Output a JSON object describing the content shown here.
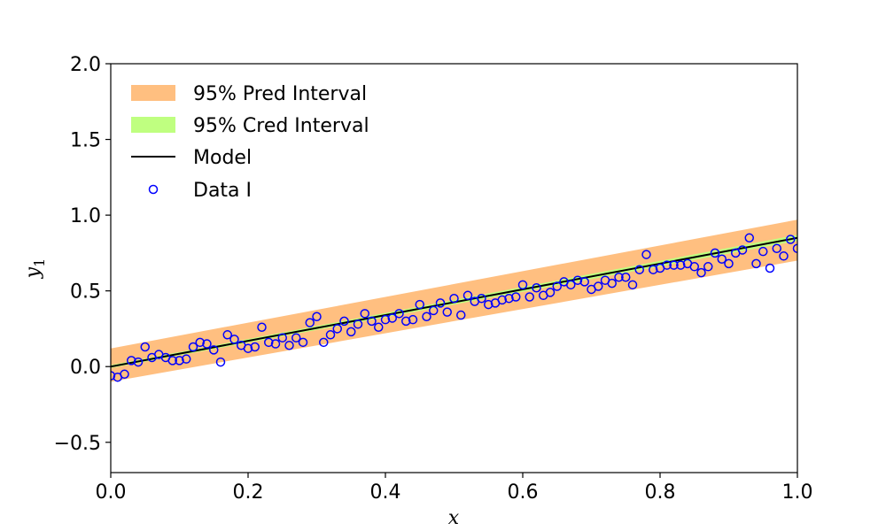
{
  "chart_data": {
    "type": "scatter",
    "xlabel": "x",
    "ylabel": "y",
    "ylabel_subscript": "1",
    "xlim": [
      0.0,
      1.0
    ],
    "ylim": [
      -0.7,
      2.0
    ],
    "x_ticks": [
      {
        "value": 0.0,
        "label": "0.0"
      },
      {
        "value": 0.2,
        "label": "0.2"
      },
      {
        "value": 0.4,
        "label": "0.4"
      },
      {
        "value": 0.6,
        "label": "0.6"
      },
      {
        "value": 0.8,
        "label": "0.8"
      },
      {
        "value": 1.0,
        "label": "1.0"
      }
    ],
    "y_ticks": [
      {
        "value": -0.5,
        "label": "−0.5"
      },
      {
        "value": 0.0,
        "label": "0.0"
      },
      {
        "value": 0.5,
        "label": "0.5"
      },
      {
        "value": 1.0,
        "label": "1.0"
      },
      {
        "value": 1.5,
        "label": "1.5"
      },
      {
        "value": 2.0,
        "label": "2.0"
      }
    ],
    "grid": false,
    "legend_position": "upper-left",
    "legend": [
      {
        "label": "95% Pred Interval",
        "kind": "patch",
        "color": "#FFBF80"
      },
      {
        "label": "95% Cred Interval",
        "kind": "patch",
        "color": "#BFFF80"
      },
      {
        "label": "Model",
        "kind": "line",
        "color": "#000000"
      },
      {
        "label": "Data I",
        "kind": "marker",
        "color": "#0000FF"
      }
    ],
    "pred_interval": {
      "x": [
        0.0,
        1.0
      ],
      "lower": [
        -0.1,
        0.7
      ],
      "upper": [
        0.12,
        0.97
      ],
      "color": "#FFBF80"
    },
    "cred_interval": {
      "x": [
        0.0,
        1.0
      ],
      "lower": [
        -0.01,
        0.83
      ],
      "upper": [
        0.01,
        0.87
      ],
      "color": "#BFFF80"
    },
    "model": {
      "x": [
        0.0,
        1.0
      ],
      "y": [
        0.0,
        0.85
      ],
      "color": "#000000"
    },
    "series": [
      {
        "name": "Data I",
        "marker": "open-circle",
        "color": "#0000FF",
        "x": [
          0.0,
          0.01,
          0.02,
          0.03,
          0.04,
          0.05,
          0.06,
          0.07,
          0.08,
          0.09,
          0.1,
          0.11,
          0.12,
          0.13,
          0.14,
          0.15,
          0.16,
          0.17,
          0.18,
          0.19,
          0.2,
          0.21,
          0.22,
          0.23,
          0.24,
          0.25,
          0.26,
          0.27,
          0.28,
          0.29,
          0.3,
          0.31,
          0.32,
          0.33,
          0.34,
          0.35,
          0.36,
          0.37,
          0.38,
          0.39,
          0.4,
          0.41,
          0.42,
          0.43,
          0.44,
          0.45,
          0.46,
          0.47,
          0.48,
          0.49,
          0.5,
          0.51,
          0.52,
          0.53,
          0.54,
          0.55,
          0.56,
          0.57,
          0.58,
          0.59,
          0.6,
          0.61,
          0.62,
          0.63,
          0.64,
          0.65,
          0.66,
          0.67,
          0.68,
          0.69,
          0.7,
          0.71,
          0.72,
          0.73,
          0.74,
          0.75,
          0.76,
          0.77,
          0.78,
          0.79,
          0.8,
          0.81,
          0.82,
          0.83,
          0.84,
          0.85,
          0.86,
          0.87,
          0.88,
          0.89,
          0.9,
          0.91,
          0.92,
          0.93,
          0.94,
          0.95,
          0.96,
          0.97,
          0.98,
          0.99,
          1.0
        ],
        "y": [
          -0.06,
          -0.07,
          -0.05,
          0.04,
          0.03,
          0.13,
          0.06,
          0.08,
          0.06,
          0.04,
          0.04,
          0.05,
          0.13,
          0.16,
          0.15,
          0.11,
          0.03,
          0.21,
          0.18,
          0.14,
          0.12,
          0.13,
          0.26,
          0.16,
          0.15,
          0.19,
          0.14,
          0.19,
          0.16,
          0.29,
          0.33,
          0.16,
          0.21,
          0.25,
          0.3,
          0.23,
          0.28,
          0.35,
          0.3,
          0.26,
          0.31,
          0.32,
          0.35,
          0.3,
          0.31,
          0.41,
          0.33,
          0.37,
          0.42,
          0.36,
          0.45,
          0.34,
          0.47,
          0.43,
          0.45,
          0.41,
          0.42,
          0.44,
          0.45,
          0.46,
          0.54,
          0.46,
          0.52,
          0.47,
          0.49,
          0.53,
          0.56,
          0.54,
          0.57,
          0.56,
          0.51,
          0.53,
          0.57,
          0.55,
          0.59,
          0.59,
          0.54,
          0.64,
          0.74,
          0.64,
          0.65,
          0.67,
          0.67,
          0.67,
          0.68,
          0.66,
          0.62,
          0.66,
          0.75,
          0.71,
          0.68,
          0.75,
          0.77,
          0.85,
          0.68,
          0.76,
          0.65,
          0.78,
          0.73,
          0.84,
          0.78
        ]
      }
    ]
  }
}
